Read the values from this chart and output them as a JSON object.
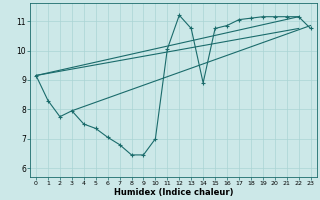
{
  "xlabel": "Humidex (Indice chaleur)",
  "bg_color": "#cce8e8",
  "line_color": "#1a6b6b",
  "grid_color": "#aad4d4",
  "xlim": [
    -0.5,
    23.5
  ],
  "ylim": [
    5.7,
    11.6
  ],
  "xticks": [
    0,
    1,
    2,
    3,
    4,
    5,
    6,
    7,
    8,
    9,
    10,
    11,
    12,
    13,
    14,
    15,
    16,
    17,
    18,
    19,
    20,
    21,
    22,
    23
  ],
  "yticks": [
    6,
    7,
    8,
    9,
    10,
    11
  ],
  "series1_x": [
    0,
    1,
    2,
    3,
    4,
    5,
    6,
    7,
    8,
    9,
    10,
    11,
    12,
    13,
    14,
    15,
    16,
    17,
    18,
    19,
    20,
    21,
    22,
    23
  ],
  "series1_y": [
    9.15,
    8.3,
    7.75,
    7.95,
    7.5,
    7.35,
    7.05,
    6.8,
    6.45,
    6.45,
    7.0,
    10.05,
    11.2,
    10.75,
    8.9,
    10.75,
    10.85,
    11.05,
    11.1,
    11.15,
    11.15,
    11.15,
    11.15,
    10.75
  ],
  "line2_x": [
    0,
    22
  ],
  "line2_y": [
    9.15,
    11.15
  ],
  "line3_x": [
    0,
    22
  ],
  "line3_y": [
    9.15,
    10.75
  ],
  "line4_x": [
    3,
    23
  ],
  "line4_y": [
    7.95,
    10.85
  ]
}
